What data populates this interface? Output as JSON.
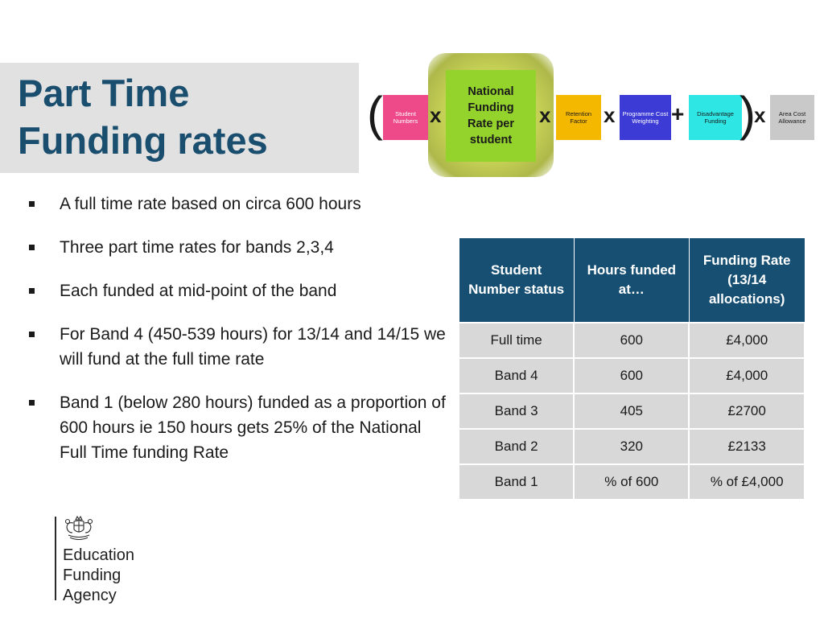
{
  "slide": {
    "title_line1": "Part Time",
    "title_line2": "Funding rates"
  },
  "formula": {
    "open_paren": "(",
    "close_paren": ")",
    "student_numbers": "Student Numbers",
    "national_rate_line1": "National",
    "national_rate_line2": "Funding",
    "national_rate_line3": "Rate per",
    "national_rate_line4": "student",
    "retention_factor": "Retention Factor",
    "programme_cost": "Programme Cost Weighting",
    "disadvantage_funding": "Disadvantage Funding",
    "area_cost": "Area Cost Allowance",
    "op_times": "x",
    "op_plus": "+"
  },
  "bullets": [
    "A full time rate  based on circa 600 hours",
    "Three part time rates for bands 2,3,4",
    "Each funded at mid-point of the band",
    "For Band 4 (450-539 hours) for 13/14 and 14/15 we will fund at the full time rate",
    "Band 1 (below 280 hours) funded as a proportion of 600 hours ie 150 hours gets 25% of the National Full Time funding Rate"
  ],
  "table": {
    "headers": [
      "Student Number status",
      "Hours funded at…",
      "Funding Rate (13/14 allocations)"
    ],
    "rows": [
      [
        "Full time",
        "600",
        "£4,000"
      ],
      [
        "Band 4",
        "600",
        "£4,000"
      ],
      [
        "Band 3",
        "405",
        "£2700"
      ],
      [
        "Band 2",
        "320",
        "£2133"
      ],
      [
        "Band 1",
        "% of 600",
        "% of £4,000"
      ]
    ]
  },
  "logo": {
    "line1": "Education",
    "line2": "Funding",
    "line3": "Agency"
  },
  "colors": {
    "title": "#1a4e6e",
    "table_header": "#174f72",
    "table_cell": "#d8d8d8",
    "student_numbers_box": "#ee4a8a",
    "national_rate_box": "#94d22c",
    "retention_box": "#f5b800",
    "programme_box": "#3d3bd6",
    "disadvantage_box": "#2ee6e4",
    "area_cost_box": "#c9c9c9"
  }
}
